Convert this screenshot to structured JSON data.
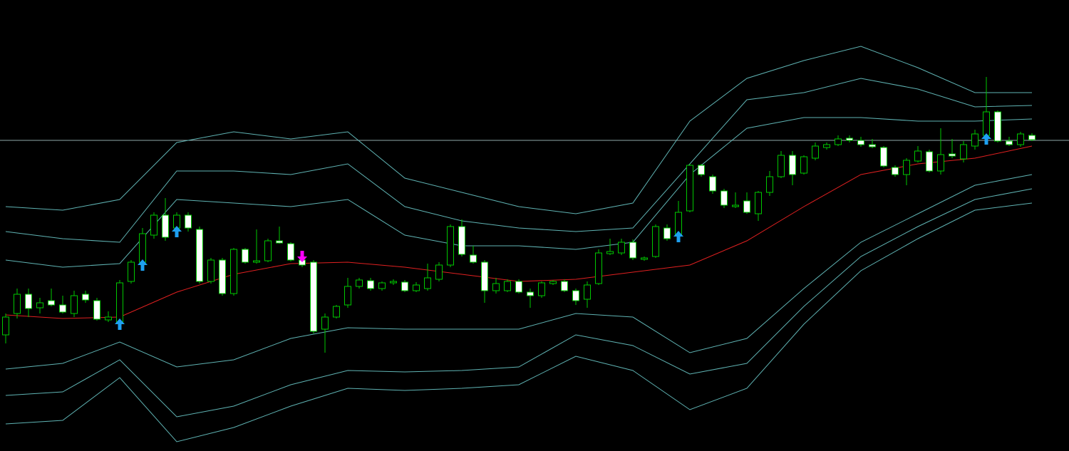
{
  "chart_data": {
    "type": "candlestick",
    "xlim": [
      -0.5,
      93.25
    ],
    "ylim": [
      0,
      633
    ],
    "candle_colors": {
      "wick": "#00c800",
      "up_body": "#000000",
      "down_body": "#ffffff"
    },
    "open": [
      163,
      193,
      220,
      201,
      211,
      205,
      193,
      220,
      211,
      184,
      181,
      238,
      265,
      303,
      331,
      313,
      331,
      311,
      238,
      268,
      221,
      283,
      265,
      267,
      295,
      291,
      268,
      265,
      171,
      188,
      205,
      231,
      239,
      228,
      236,
      237,
      225,
      228,
      241,
      261,
      315,
      275,
      265,
      225,
      225,
      238,
      223,
      218,
      235,
      238,
      225,
      213,
      235,
      277,
      278,
      293,
      269,
      273,
      313,
      303,
      337,
      401,
      385,
      365,
      343,
      351,
      333,
      363,
      385,
      415,
      390,
      411,
      426,
      430,
      439,
      436,
      430,
      426,
      398,
      388,
      407,
      420,
      393,
      417,
      410,
      428,
      443,
      476,
      435,
      430,
      443
    ],
    "high": [
      193,
      228,
      228,
      215,
      228,
      218,
      225,
      225,
      215,
      196,
      240,
      268,
      313,
      335,
      355,
      335,
      335,
      315,
      271,
      271,
      285,
      285,
      311,
      298,
      315,
      293,
      273,
      268,
      193,
      205,
      243,
      243,
      243,
      238,
      241,
      240,
      237,
      263,
      265,
      318,
      325,
      288,
      268,
      243,
      241,
      241,
      228,
      238,
      240,
      241,
      228,
      238,
      283,
      298,
      298,
      297,
      273,
      318,
      318,
      351,
      403,
      403,
      388,
      368,
      363,
      363,
      365,
      393,
      421,
      421,
      415,
      433,
      433,
      443,
      443,
      441,
      438,
      428,
      401,
      411,
      428,
      423,
      453,
      438,
      435,
      451,
      525,
      478,
      441,
      448,
      446
    ],
    "low": [
      151,
      186,
      188,
      193,
      203,
      193,
      188,
      208,
      183,
      181,
      178,
      235,
      261,
      298,
      295,
      308,
      308,
      235,
      235,
      218,
      218,
      263,
      263,
      265,
      291,
      266,
      258,
      165,
      138,
      186,
      201,
      228,
      225,
      225,
      233,
      223,
      223,
      225,
      238,
      258,
      273,
      263,
      208,
      221,
      223,
      221,
      201,
      215,
      233,
      223,
      205,
      201,
      233,
      275,
      275,
      268,
      267,
      271,
      295,
      301,
      335,
      385,
      361,
      341,
      341,
      333,
      323,
      358,
      383,
      373,
      388,
      408,
      423,
      428,
      433,
      427,
      425,
      398,
      385,
      373,
      405,
      391,
      388,
      411,
      405,
      423,
      438,
      433,
      428,
      427,
      435
    ],
    "close": [
      188,
      220,
      200,
      208,
      205,
      195,
      218,
      212,
      185,
      188,
      236,
      265,
      305,
      331,
      300,
      331,
      313,
      238,
      268,
      221,
      283,
      265,
      267,
      295,
      292,
      268,
      261,
      168,
      188,
      203,
      231,
      240,
      228,
      236,
      238,
      225,
      233,
      243,
      261,
      315,
      276,
      265,
      225,
      235,
      238,
      223,
      218,
      236,
      238,
      225,
      211,
      233,
      278,
      280,
      293,
      271,
      271,
      315,
      298,
      335,
      401,
      388,
      365,
      345,
      345,
      335,
      363,
      385,
      415,
      388,
      413,
      428,
      430,
      438,
      436,
      430,
      427,
      400,
      388,
      408,
      421,
      393,
      416,
      414,
      430,
      445,
      476,
      435,
      430,
      445,
      437
    ],
    "lines": [
      {
        "color": "#e02020",
        "x": [
          0,
          5,
          10,
          15,
          20,
          25,
          30,
          35,
          40,
          45,
          50,
          55,
          60,
          65,
          70,
          75,
          80,
          85,
          90
        ],
        "values": [
          191,
          186,
          188,
          223,
          248,
          263,
          265,
          258,
          248,
          238,
          241,
          251,
          261,
          295,
          343,
          388,
          403,
          411,
          428
        ]
      },
      {
        "color": "#5fb3b3",
        "x": [
          0,
          5,
          10,
          15,
          20,
          25,
          30,
          35,
          40,
          45,
          50,
          55,
          60,
          65,
          70,
          75,
          80,
          85,
          90
        ],
        "values": [
          343,
          338,
          353,
          433,
          448,
          438,
          448,
          383,
          363,
          343,
          333,
          348,
          463,
          523,
          548,
          568,
          538,
          503,
          503
        ]
      },
      {
        "color": "#5fb3b3",
        "x": [
          0,
          5,
          10,
          15,
          20,
          25,
          30,
          35,
          40,
          45,
          50,
          55,
          60,
          65,
          70,
          75,
          80,
          85,
          90
        ],
        "values": [
          308,
          298,
          293,
          393,
          393,
          388,
          403,
          343,
          323,
          313,
          308,
          313,
          403,
          493,
          503,
          523,
          508,
          483,
          485
        ]
      },
      {
        "color": "#5fb3b3",
        "x": [
          0,
          5,
          10,
          15,
          20,
          25,
          30,
          35,
          40,
          45,
          50,
          55,
          60,
          65,
          70,
          75,
          80,
          85,
          90
        ],
        "values": [
          268,
          258,
          263,
          353,
          348,
          343,
          353,
          303,
          288,
          288,
          283,
          293,
          388,
          453,
          468,
          468,
          463,
          463,
          466
        ]
      },
      {
        "color": "#5fb3b3",
        "x": [
          0,
          5,
          10,
          15,
          20,
          25,
          30,
          35,
          40,
          45,
          50,
          55,
          60,
          65,
          70,
          75,
          80,
          85,
          90
        ],
        "values": [
          115,
          123,
          153,
          118,
          128,
          158,
          173,
          171,
          171,
          171,
          193,
          188,
          138,
          158,
          228,
          293,
          333,
          373,
          388
        ]
      },
      {
        "color": "#5fb3b3",
        "x": [
          0,
          5,
          10,
          15,
          20,
          25,
          30,
          35,
          40,
          45,
          50,
          55,
          60,
          65,
          70,
          75,
          80,
          85,
          90
        ],
        "values": [
          78,
          83,
          128,
          48,
          63,
          93,
          113,
          111,
          113,
          118,
          163,
          148,
          108,
          123,
          203,
          273,
          315,
          353,
          368
        ]
      },
      {
        "color": "#5fb3b3",
        "x": [
          0,
          5,
          10,
          15,
          20,
          25,
          30,
          35,
          40,
          45,
          50,
          55,
          60,
          65,
          70,
          75,
          80,
          85,
          90
        ],
        "values": [
          38,
          43,
          103,
          13,
          33,
          63,
          88,
          85,
          88,
          93,
          133,
          113,
          58,
          88,
          178,
          253,
          298,
          338,
          348
        ]
      }
    ],
    "price_line": {
      "value": 436,
      "color": "#8fa8a8"
    },
    "buy_signals": {
      "color": "#1ea0f0",
      "indices": [
        10,
        12,
        15,
        59,
        86
      ]
    },
    "sell_signals": {
      "color": "#ff00ff",
      "indices": [
        26
      ]
    }
  }
}
